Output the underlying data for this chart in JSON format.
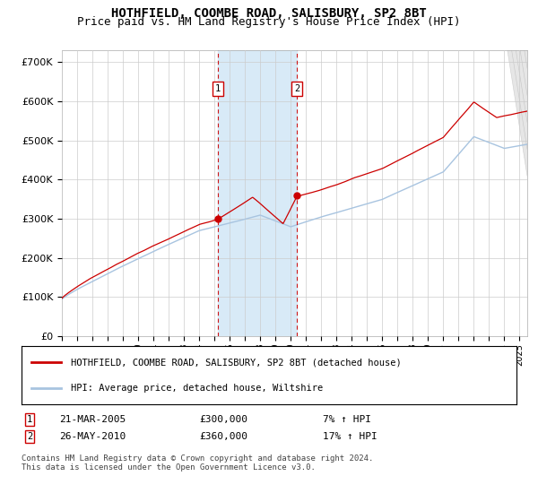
{
  "title": "HOTHFIELD, COOMBE ROAD, SALISBURY, SP2 8BT",
  "subtitle": "Price paid vs. HM Land Registry's House Price Index (HPI)",
  "title_fontsize": 10,
  "subtitle_fontsize": 9,
  "ylim": [
    0,
    730000
  ],
  "yticks": [
    0,
    100000,
    200000,
    300000,
    400000,
    500000,
    600000,
    700000
  ],
  "ytick_labels": [
    "£0",
    "£100K",
    "£200K",
    "£300K",
    "£400K",
    "£500K",
    "£600K",
    "£700K"
  ],
  "hpi_color": "#a8c4e0",
  "price_color": "#cc0000",
  "background_color": "#ffffff",
  "grid_color": "#cccccc",
  "shade_color": "#d8eaf7",
  "transaction1_date_num": 2005.22,
  "transaction1_price": 300000,
  "transaction1_label": "1",
  "transaction1_date_str": "21-MAR-2005",
  "transaction1_pct": "7% ↑ HPI",
  "transaction2_date_num": 2010.4,
  "transaction2_price": 360000,
  "transaction2_label": "2",
  "transaction2_date_str": "26-MAY-2010",
  "transaction2_pct": "17% ↑ HPI",
  "legend_label_price": "HOTHFIELD, COOMBE ROAD, SALISBURY, SP2 8BT (detached house)",
  "legend_label_hpi": "HPI: Average price, detached house, Wiltshire",
  "footnote": "Contains HM Land Registry data © Crown copyright and database right 2024.\nThis data is licensed under the Open Government Licence v3.0.",
  "price1_str": "£300,000",
  "price2_str": "£360,000",
  "xmin": 1995.0,
  "xmax": 2025.5
}
